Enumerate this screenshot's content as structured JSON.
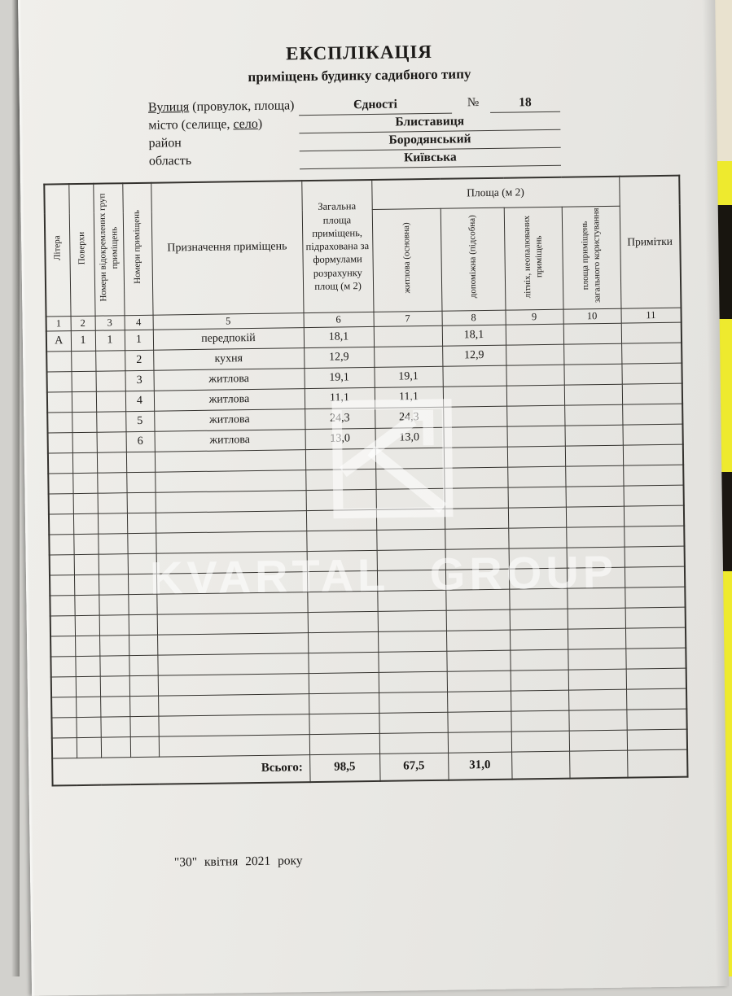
{
  "document": {
    "title": "ЕКСПЛІКАЦІЯ",
    "subtitle": "приміщень будинку садибного типу",
    "date_line": "\"30\" квітня  2021  року"
  },
  "address": {
    "street_label_underlined": "Вулиця",
    "street_label_rest": " (провулок, площа)",
    "street_value": "Єдності",
    "number_sign": "№",
    "house_number": "18",
    "city_label_pre": "місто (селище, ",
    "city_label_underlined": "село",
    "city_label_post": ")",
    "city_value": "Блиставиця",
    "district_label": "район",
    "district_value": "Бородянський",
    "region_label": "область",
    "region_value": "Київська"
  },
  "table": {
    "area_group_header": "Площа (м 2)",
    "columns": [
      {
        "num": "1",
        "label": "Літера"
      },
      {
        "num": "2",
        "label": "Поверхи"
      },
      {
        "num": "3",
        "label": "Номери відокремлених груп приміщень"
      },
      {
        "num": "4",
        "label": "Номери приміщень"
      },
      {
        "num": "5",
        "label": "Призначення приміщень"
      },
      {
        "num": "6",
        "label": "Загальна площа приміщень, підрахована за формулами розрахунку площ (м 2)"
      },
      {
        "num": "7",
        "label": "житлова (основна)"
      },
      {
        "num": "8",
        "label": "допоміжна (підсобна)"
      },
      {
        "num": "9",
        "label": "літніх, неопалюваних приміщень"
      },
      {
        "num": "10",
        "label": "площа приміщень загального користування"
      },
      {
        "num": "11",
        "label": "Примітки"
      }
    ],
    "rows": [
      {
        "litera": "А",
        "floor": "1",
        "group": "1",
        "num": "1",
        "purpose": "передпокій",
        "total": "18,1",
        "living": "",
        "aux": "18,1",
        "summer": "",
        "common": "",
        "notes": ""
      },
      {
        "litera": "",
        "floor": "",
        "group": "",
        "num": "2",
        "purpose": "кухня",
        "total": "12,9",
        "living": "",
        "aux": "12,9",
        "summer": "",
        "common": "",
        "notes": ""
      },
      {
        "litera": "",
        "floor": "",
        "group": "",
        "num": "3",
        "purpose": "житлова",
        "total": "19,1",
        "living": "19,1",
        "aux": "",
        "summer": "",
        "common": "",
        "notes": ""
      },
      {
        "litera": "",
        "floor": "",
        "group": "",
        "num": "4",
        "purpose": "житлова",
        "total": "11,1",
        "living": "11,1",
        "aux": "",
        "summer": "",
        "common": "",
        "notes": ""
      },
      {
        "litera": "",
        "floor": "",
        "group": "",
        "num": "5",
        "purpose": "житлова",
        "total": "24,3",
        "living": "24,3",
        "aux": "",
        "summer": "",
        "common": "",
        "notes": ""
      },
      {
        "litera": "",
        "floor": "",
        "group": "",
        "num": "6",
        "purpose": "житлова",
        "total": "13,0",
        "living": "13,0",
        "aux": "",
        "summer": "",
        "common": "",
        "notes": ""
      }
    ],
    "empty_row_count": 15,
    "total_label": "Всього:",
    "totals": {
      "total": "98,5",
      "living": "67,5",
      "aux": "31,0"
    }
  },
  "watermark": {
    "text": "KVARTAL GROUP"
  }
}
